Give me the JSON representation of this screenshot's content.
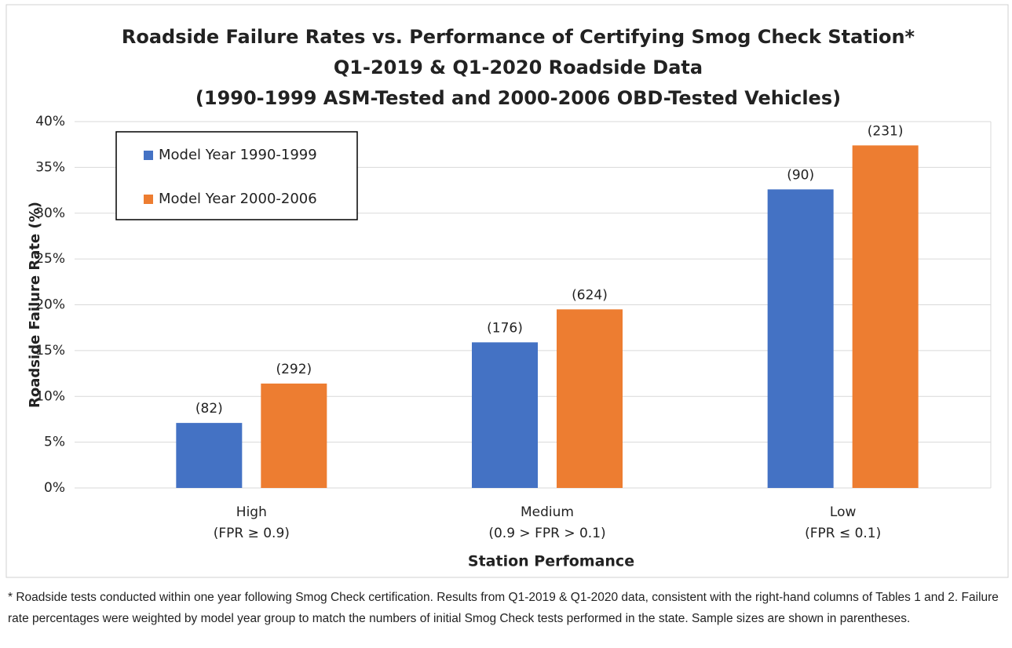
{
  "chart_data": {
    "type": "bar",
    "title": [
      "Roadside Failure Rates vs. Performance of Certifying Smog Check Station*",
      "Q1-2019 & Q1-2020 Roadside Data",
      "(1990-1999 ASM-Tested and 2000-2006 OBD-Tested Vehicles)"
    ],
    "x_label": "Station Perfomance",
    "y_label": "Roadside Failure Rate (%)",
    "categories": [
      [
        "High",
        "(FPR ≥ 0.9)"
      ],
      [
        "Medium",
        "(0.9 > FPR > 0.1)"
      ],
      [
        "Low",
        "(FPR ≤ 0.1)"
      ]
    ],
    "series": [
      {
        "name": "Model Year 1990-1999",
        "color": "#4472c4",
        "values": [
          7.1,
          15.9,
          32.6
        ],
        "labels": [
          "(82)",
          "(176)",
          "(90)"
        ]
      },
      {
        "name": "Model Year 2000-2006",
        "color": "#ed7d31",
        "values": [
          11.4,
          19.5,
          37.4
        ],
        "labels": [
          "(292)",
          "(624)",
          "(231)"
        ]
      }
    ],
    "ylim": [
      0,
      40
    ],
    "yticks": [
      {
        "value": 0,
        "label": "0%"
      },
      {
        "value": 5,
        "label": "5%"
      },
      {
        "value": 10,
        "label": "10%"
      },
      {
        "value": 15,
        "label": "15%"
      },
      {
        "value": 20,
        "label": "20%"
      },
      {
        "value": 25,
        "label": "25%"
      },
      {
        "value": 30,
        "label": "30%"
      },
      {
        "value": 35,
        "label": "35%"
      },
      {
        "value": 40,
        "label": "40%"
      }
    ],
    "grid": true,
    "legend": "upper left",
    "footnote": "* Roadside tests conducted within one year following Smog Check certification. Results from Q1-2019 & Q1-2020 data, consistent with the right-hand columns of Tables 1 and 2. Failure rate percentages were weighted by model year group to match the numbers of initial Smog Check tests performed in the state. Sample sizes are shown in parentheses."
  }
}
